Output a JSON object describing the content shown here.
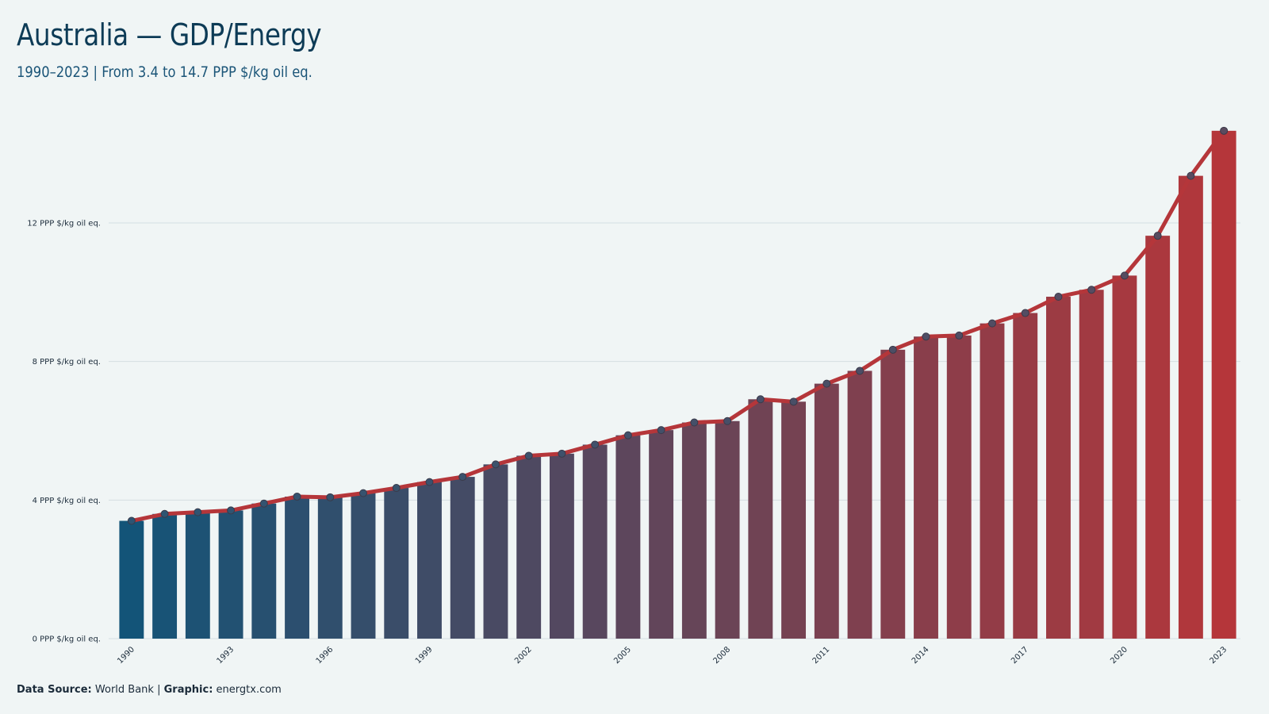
{
  "title": "Australia — GDP/Energy",
  "subtitle": "1990–2023 | From 3.4 to 14.7 PPP $/kg oil eq.",
  "footer": {
    "source_label": "Data Source:",
    "source_value": "World Bank",
    "separator": "|",
    "graphic_label": "Graphic:",
    "graphic_value": "energtx.com"
  },
  "colors": {
    "background": "#f0f5f5",
    "bar_start": "#135478",
    "bar_end": "#b5363a",
    "line": "#b5363a",
    "point_fill": "#2d5573",
    "grid": "#d5dee2"
  },
  "chart_data": {
    "type": "bar",
    "overlay": "line",
    "title": "Australia — GDP/Energy",
    "subtitle": "1990–2023 | From 3.4 to 14.7 PPP $/kg oil eq.",
    "xlabel": "",
    "ylabel": "",
    "ylim": [
      0,
      15
    ],
    "yticks": [
      0,
      4,
      8,
      12
    ],
    "ytick_labels": [
      "0 PPP $/kg oil eq.",
      "4 PPP $/kg oil eq.",
      "8 PPP $/kg oil eq.",
      "12 PPP $/kg oil eq."
    ],
    "xtick_labels": [
      "1990",
      "1993",
      "1996",
      "1999",
      "2002",
      "2005",
      "2008",
      "2011",
      "2014",
      "2017",
      "2020",
      "2023"
    ],
    "grid": true,
    "categories": [
      1990,
      1991,
      1992,
      1993,
      1994,
      1995,
      1996,
      1997,
      1998,
      1999,
      2000,
      2001,
      2002,
      2003,
      2004,
      2005,
      2006,
      2007,
      2008,
      2009,
      2010,
      2011,
      2012,
      2013,
      2014,
      2015,
      2016,
      2017,
      2018,
      2019,
      2020,
      2021,
      2022,
      2023
    ],
    "values": [
      3.4,
      3.6,
      3.65,
      3.7,
      3.9,
      4.1,
      4.08,
      4.2,
      4.35,
      4.52,
      4.67,
      5.03,
      5.28,
      5.34,
      5.6,
      5.87,
      6.02,
      6.24,
      6.28,
      6.91,
      6.84,
      7.36,
      7.73,
      8.34,
      8.72,
      8.75,
      9.1,
      9.4,
      9.87,
      10.07,
      10.48,
      11.63,
      13.36,
      14.66
    ]
  }
}
